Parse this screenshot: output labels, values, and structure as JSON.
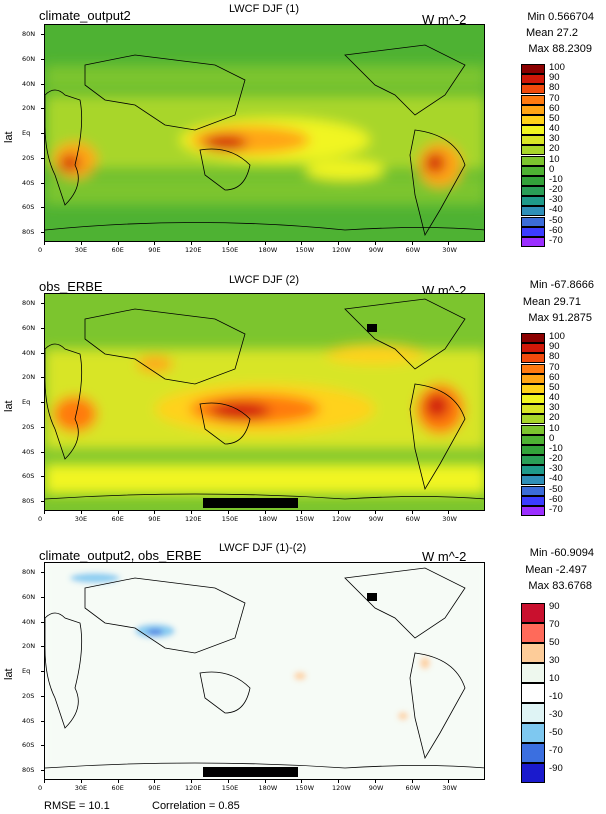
{
  "panels": [
    {
      "field_name": "climate_output2",
      "title": "LWCF DJF (1)",
      "units": "W m^-2",
      "stats": {
        "min": "Min 0.566704",
        "mean": "Mean 27.2",
        "max": "Max 88.2309"
      },
      "y_axis_label": "lat",
      "colorbar_labels": [
        "100",
        "90",
        "80",
        "70",
        "60",
        "50",
        "40",
        "30",
        "20",
        "10",
        "0",
        "-10",
        "-20",
        "-30",
        "-40",
        "-50",
        "-60",
        "-70"
      ]
    },
    {
      "field_name": "obs_ERBE",
      "title": "LWCF DJF (2)",
      "units": "W m^-2",
      "stats": {
        "min": "Min -67.8666",
        "mean": "Mean 29.71",
        "max": "Max 91.2875"
      },
      "y_axis_label": "lat",
      "colorbar_labels": [
        "100",
        "90",
        "80",
        "70",
        "60",
        "50",
        "40",
        "30",
        "20",
        "10",
        "0",
        "-10",
        "-20",
        "-30",
        "-40",
        "-50",
        "-60",
        "-70"
      ]
    },
    {
      "field_name": "climate_output2, obs_ERBE",
      "title": "LWCF DJF (1)-(2)",
      "units": "W m^-2",
      "stats": {
        "min": "Min -60.9094",
        "mean": "Mean -2.497",
        "max": "Max 83.6768"
      },
      "y_axis_label": "lat",
      "colorbar_labels": [
        "90",
        "70",
        "50",
        "30",
        "10",
        "-10",
        "-30",
        "-50",
        "-70",
        "-90"
      ],
      "rmse": "RMSE = 10.1",
      "correlation": "Correlation = 0.85"
    }
  ],
  "lat_ticks": [
    "80N",
    "60N",
    "40N",
    "20N",
    "Eq",
    "20S",
    "40S",
    "60S",
    "80S"
  ],
  "lon_ticks": [
    "0",
    "30E",
    "60E",
    "90E",
    "120E",
    "150E",
    "180W",
    "150W",
    "120W",
    "90W",
    "60W",
    "30W"
  ],
  "chart_data": [
    {
      "type": "heatmap",
      "title": "LWCF DJF (1)",
      "field": "climate_output2",
      "units": "W m^-2",
      "projection": "cylindrical equidistant, 0 to 360 longitude",
      "min": 0.566704,
      "mean": 27.2,
      "max": 88.2309,
      "contour_levels": [
        -70,
        -60,
        -50,
        -40,
        -30,
        -20,
        -10,
        0,
        10,
        20,
        30,
        40,
        50,
        60,
        70,
        80,
        90,
        100
      ],
      "colors": [
        "#9b2fff",
        "#3c3cff",
        "#3c6cd8",
        "#2f8fb8",
        "#1f9a8a",
        "#2a9e57",
        "#33a23a",
        "#4eb233",
        "#7cc52e",
        "#a8d62a",
        "#d8e526",
        "#f1f520",
        "#ffd21a",
        "#ffa515",
        "#ff7a10",
        "#f24a0c",
        "#d01808",
        "#8b0000"
      ],
      "features": "Maxima (60-88) over tropical western Pacific, central Africa and Amazon; background 10-30 elsewhere"
    },
    {
      "type": "heatmap",
      "title": "LWCF DJF (2)",
      "field": "obs_ERBE",
      "units": "W m^-2",
      "projection": "cylindrical equidistant, 0 to 360 longitude",
      "min": -67.8666,
      "mean": 29.71,
      "max": 91.2875,
      "contour_levels": [
        -70,
        -60,
        -50,
        -40,
        -30,
        -20,
        -10,
        0,
        10,
        20,
        30,
        40,
        50,
        60,
        70,
        80,
        90,
        100
      ],
      "colors": [
        "#9b2fff",
        "#3c3cff",
        "#3c6cd8",
        "#2f8fb8",
        "#1f9a8a",
        "#2a9e57",
        "#33a23a",
        "#4eb233",
        "#7cc52e",
        "#a8d62a",
        "#d8e526",
        "#f1f520",
        "#ffd21a",
        "#ffa515",
        "#ff7a10",
        "#f24a0c",
        "#d01808",
        "#8b0000"
      ],
      "features": "Maxima over maritime continent, central Africa, Amazon; missing data near Antarctica (black)"
    },
    {
      "type": "heatmap",
      "title": "LWCF DJF (1)-(2)",
      "field": "climate_output2, obs_ERBE",
      "units": "W m^-2",
      "projection": "cylindrical equidistant, 0 to 360 longitude",
      "min": -60.9094,
      "mean": -2.497,
      "max": 83.6768,
      "rmse": 10.1,
      "correlation": 0.85,
      "contour_levels": [
        -90,
        -70,
        -50,
        -30,
        -10,
        10,
        30,
        50,
        70,
        90
      ],
      "colors": [
        "#1a1acd",
        "#3b6fe0",
        "#7ec8f0",
        "#dff4f5",
        "#ffffff",
        "#eef8ee",
        "#fdcc99",
        "#ff6a5a",
        "#c9102e"
      ],
      "features": "Mostly near zero; negative (blue) over Tibetan plateau and north Asia; small positive near equatorial Pacific"
    }
  ]
}
